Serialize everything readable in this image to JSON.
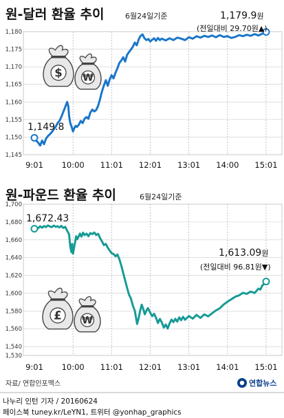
{
  "chart_data": [
    {
      "type": "line",
      "title": "원-달러 환율 추이",
      "subtitle": "6월24일기준",
      "x_ticks": [
        "9:01",
        "10:00",
        "11:01",
        "12:01",
        "13:01",
        "14:00",
        "15:01"
      ],
      "ylim": [
        1145,
        1180
      ],
      "y_ticks": [
        "1,145",
        "1,150",
        "1,155",
        "1,160",
        "1,165",
        "1,170",
        "1,175",
        "1,180"
      ],
      "start_label": "1,149.8",
      "end_label": "1,179.9",
      "end_unit": "원",
      "change_label": "(전일대비 29.70원▲)",
      "color": "#1a76c9",
      "points": [
        [
          0,
          1149.8
        ],
        [
          0.05,
          1149.0
        ],
        [
          0.1,
          1148.4
        ],
        [
          0.15,
          1147.6
        ],
        [
          0.2,
          1149.0
        ],
        [
          0.25,
          1148.0
        ],
        [
          0.3,
          1149.5
        ],
        [
          0.35,
          1150.3
        ],
        [
          0.4,
          1150.8
        ],
        [
          0.45,
          1151.4
        ],
        [
          0.5,
          1152.2
        ],
        [
          0.55,
          1152.9
        ],
        [
          0.6,
          1154.0
        ],
        [
          0.65,
          1154.6
        ],
        [
          0.7,
          1155.8
        ],
        [
          0.75,
          1157.2
        ],
        [
          0.8,
          1158.6
        ],
        [
          0.85,
          1160.0
        ],
        [
          0.88,
          1158.7
        ],
        [
          0.9,
          1156.0
        ],
        [
          0.93,
          1154.0
        ],
        [
          0.97,
          1152.7
        ],
        [
          1.0,
          1151.6
        ],
        [
          1.03,
          1152.5
        ],
        [
          1.07,
          1153.2
        ],
        [
          1.1,
          1152.9
        ],
        [
          1.15,
          1153.5
        ],
        [
          1.2,
          1154.6
        ],
        [
          1.25,
          1154.0
        ],
        [
          1.3,
          1155.2
        ],
        [
          1.35,
          1155.7
        ],
        [
          1.4,
          1155.2
        ],
        [
          1.45,
          1157.0
        ],
        [
          1.5,
          1157.8
        ],
        [
          1.55,
          1157.3
        ],
        [
          1.6,
          1157.7
        ],
        [
          1.65,
          1158.9
        ],
        [
          1.7,
          1160.8
        ],
        [
          1.75,
          1163.0
        ],
        [
          1.8,
          1164.7
        ],
        [
          1.85,
          1166.2
        ],
        [
          1.9,
          1164.6
        ],
        [
          1.95,
          1166.4
        ],
        [
          2.0,
          1167.6
        ],
        [
          2.05,
          1166.7
        ],
        [
          2.1,
          1168.3
        ],
        [
          2.15,
          1169.6
        ],
        [
          2.2,
          1171.1
        ],
        [
          2.25,
          1171.8
        ],
        [
          2.3,
          1172.7
        ],
        [
          2.35,
          1171.5
        ],
        [
          2.4,
          1173.4
        ],
        [
          2.45,
          1174.2
        ],
        [
          2.5,
          1174.9
        ],
        [
          2.55,
          1175.7
        ],
        [
          2.6,
          1176.9
        ],
        [
          2.65,
          1176.1
        ],
        [
          2.7,
          1177.8
        ],
        [
          2.75,
          1178.8
        ],
        [
          2.8,
          1179.2
        ],
        [
          2.85,
          1178.1
        ],
        [
          2.9,
          1177.6
        ],
        [
          2.95,
          1177.9
        ],
        [
          3.0,
          1177.2
        ],
        [
          3.05,
          1177.7
        ],
        [
          3.1,
          1178.1
        ],
        [
          3.15,
          1177.4
        ],
        [
          3.2,
          1178.2
        ],
        [
          3.25,
          1177.6
        ],
        [
          3.3,
          1178.0
        ],
        [
          3.4,
          1177.5
        ],
        [
          3.5,
          1178.1
        ],
        [
          3.6,
          1177.6
        ],
        [
          3.7,
          1178.3
        ],
        [
          3.8,
          1178.0
        ],
        [
          3.9,
          1177.6
        ],
        [
          4.0,
          1178.4
        ],
        [
          4.1,
          1178.0
        ],
        [
          4.2,
          1178.7
        ],
        [
          4.3,
          1178.3
        ],
        [
          4.4,
          1178.8
        ],
        [
          4.5,
          1178.5
        ],
        [
          4.6,
          1178.9
        ],
        [
          4.7,
          1178.4
        ],
        [
          4.8,
          1179.0
        ],
        [
          4.9,
          1178.5
        ],
        [
          5.0,
          1178.7
        ],
        [
          5.1,
          1178.2
        ],
        [
          5.2,
          1178.5
        ],
        [
          5.3,
          1179.0
        ],
        [
          5.4,
          1178.7
        ],
        [
          5.5,
          1179.1
        ],
        [
          5.6,
          1178.8
        ],
        [
          5.7,
          1179.3
        ],
        [
          5.8,
          1178.9
        ],
        [
          5.9,
          1179.4
        ],
        [
          6.0,
          1179.9
        ]
      ]
    },
    {
      "type": "line",
      "title": "원-파운드 환율 추이",
      "subtitle": "6월24일기준",
      "x_ticks": [
        "9:01",
        "10:00",
        "11:01",
        "12:01",
        "13:01",
        "14:01",
        "15:01"
      ],
      "ylim": [
        1530,
        1700
      ],
      "y_ticks": [
        "1,530",
        "1,540",
        "1,560",
        "1,580",
        "1,600",
        "1,620",
        "1,640",
        "1,660",
        "1,680",
        "1,700"
      ],
      "start_label": "1,672.43",
      "end_label": "1,613.09",
      "end_unit": "원",
      "change_label": "(전일대비 96.81원▼)",
      "color": "#179b96",
      "points": [
        [
          0,
          1672.4
        ],
        [
          0.05,
          1674.1
        ],
        [
          0.1,
          1673.0
        ],
        [
          0.15,
          1675.2
        ],
        [
          0.2,
          1673.6
        ],
        [
          0.25,
          1675.4
        ],
        [
          0.3,
          1674.3
        ],
        [
          0.35,
          1676.1
        ],
        [
          0.4,
          1675.0
        ],
        [
          0.45,
          1674.2
        ],
        [
          0.5,
          1676.0
        ],
        [
          0.55,
          1674.6
        ],
        [
          0.6,
          1675.3
        ],
        [
          0.65,
          1673.9
        ],
        [
          0.7,
          1675.6
        ],
        [
          0.75,
          1673.3
        ],
        [
          0.8,
          1674.6
        ],
        [
          0.85,
          1670.2
        ],
        [
          0.9,
          1666.0
        ],
        [
          0.93,
          1652.2
        ],
        [
          0.96,
          1646.1
        ],
        [
          0.98,
          1655.3
        ],
        [
          1.0,
          1644.4
        ],
        [
          1.03,
          1652.0
        ],
        [
          1.06,
          1658.3
        ],
        [
          1.08,
          1664.0
        ],
        [
          1.11,
          1660.6
        ],
        [
          1.14,
          1663.1
        ],
        [
          1.18,
          1667.0
        ],
        [
          1.22,
          1663.5
        ],
        [
          1.26,
          1668.0
        ],
        [
          1.3,
          1665.2
        ],
        [
          1.35,
          1666.9
        ],
        [
          1.4,
          1664.0
        ],
        [
          1.45,
          1667.5
        ],
        [
          1.5,
          1666.4
        ],
        [
          1.55,
          1668.2
        ],
        [
          1.6,
          1665.4
        ],
        [
          1.65,
          1666.7
        ],
        [
          1.7,
          1662.0
        ],
        [
          1.75,
          1658.2
        ],
        [
          1.8,
          1654.0
        ],
        [
          1.85,
          1655.3
        ],
        [
          1.9,
          1651.0
        ],
        [
          1.95,
          1648.0
        ],
        [
          2.0,
          1645.0
        ],
        [
          2.05,
          1644.0
        ],
        [
          2.1,
          1641.5
        ],
        [
          2.15,
          1643.4
        ],
        [
          2.2,
          1638.0
        ],
        [
          2.25,
          1631.0
        ],
        [
          2.3,
          1622.6
        ],
        [
          2.35,
          1614.2
        ],
        [
          2.4,
          1606.0
        ],
        [
          2.45,
          1598.3
        ],
        [
          2.5,
          1594.0
        ],
        [
          2.55,
          1586.0
        ],
        [
          2.6,
          1580.3
        ],
        [
          2.63,
          1573.0
        ],
        [
          2.66,
          1565.4
        ],
        [
          2.7,
          1572.2
        ],
        [
          2.74,
          1580.6
        ],
        [
          2.78,
          1587.0
        ],
        [
          2.82,
          1582.0
        ],
        [
          2.86,
          1576.2
        ],
        [
          2.9,
          1580.3
        ],
        [
          2.94,
          1583.2
        ],
        [
          3.0,
          1578.0
        ],
        [
          3.05,
          1574.1
        ],
        [
          3.1,
          1576.8
        ],
        [
          3.15,
          1572.3
        ],
        [
          3.2,
          1566.5
        ],
        [
          3.25,
          1571.0
        ],
        [
          3.3,
          1567.2
        ],
        [
          3.35,
          1561.4
        ],
        [
          3.4,
          1564.8
        ],
        [
          3.45,
          1560.2
        ],
        [
          3.5,
          1566.0
        ],
        [
          3.55,
          1570.3
        ],
        [
          3.6,
          1567.5
        ],
        [
          3.65,
          1571.2
        ],
        [
          3.7,
          1568.0
        ],
        [
          3.75,
          1572.8
        ],
        [
          3.8,
          1569.6
        ],
        [
          3.85,
          1573.4
        ],
        [
          3.9,
          1570.1
        ],
        [
          4.0,
          1574.3
        ],
        [
          4.1,
          1571.4
        ],
        [
          4.2,
          1575.6
        ],
        [
          4.3,
          1572.2
        ],
        [
          4.4,
          1576.1
        ],
        [
          4.5,
          1574.0
        ],
        [
          4.6,
          1577.4
        ],
        [
          4.7,
          1580.5
        ],
        [
          4.8,
          1583.0
        ],
        [
          4.9,
          1587.2
        ],
        [
          5.0,
          1590.4
        ],
        [
          5.1,
          1593.1
        ],
        [
          5.2,
          1596.0
        ],
        [
          5.3,
          1597.5
        ],
        [
          5.4,
          1600.4
        ],
        [
          5.5,
          1599.2
        ],
        [
          5.6,
          1601.8
        ],
        [
          5.7,
          1600.2
        ],
        [
          5.8,
          1605.0
        ],
        [
          5.85,
          1604.0
        ],
        [
          5.9,
          1608.6
        ],
        [
          5.95,
          1610.5
        ],
        [
          6.0,
          1613.1
        ]
      ]
    }
  ],
  "bag_icons": [
    {
      "symbols": [
        "$",
        "₩"
      ]
    },
    {
      "symbols": [
        "£",
        "₩"
      ]
    }
  ],
  "source": "자료/ 연합인포맥스",
  "logo": "연합뉴스",
  "byline": "나누리 인턴 기자 / 20160624",
  "credits": "페이스북 tuney.kr/LeYN1, 트위터 @yonhap_graphics",
  "colors": {
    "bag_fill": "#e8e8e8",
    "bag_stroke": "#444444",
    "grid": "#cccccc"
  }
}
